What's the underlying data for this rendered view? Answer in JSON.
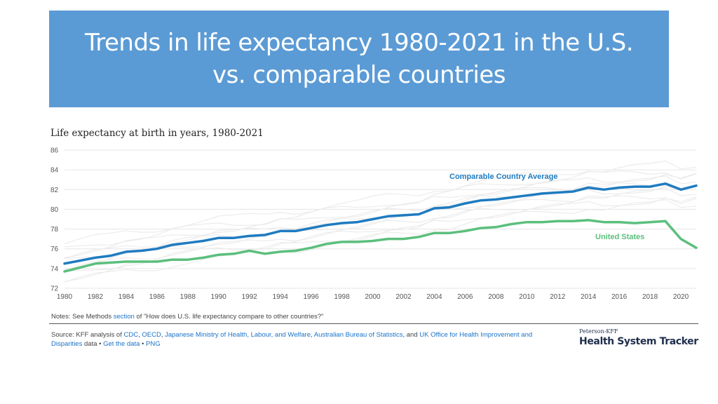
{
  "slide": {
    "title_line1": "Trends in life expectancy 1980-2021 in the U.S.",
    "title_line2": "vs. comparable countries"
  },
  "chart_data": {
    "type": "line",
    "title": "Life expectancy at birth in years, 1980-2021",
    "xlabel": "",
    "ylabel": "",
    "xlim": [
      1980,
      2021
    ],
    "ylim": [
      72,
      86
    ],
    "grid": true,
    "y_ticks": [
      72,
      74,
      76,
      78,
      80,
      82,
      84,
      86
    ],
    "x_ticks": [
      1980,
      1982,
      1984,
      1986,
      1988,
      1990,
      1992,
      1994,
      1996,
      1998,
      2000,
      2002,
      2004,
      2006,
      2008,
      2010,
      2012,
      2014,
      2016,
      2018,
      2020
    ],
    "x": [
      1980,
      1981,
      1982,
      1983,
      1984,
      1985,
      1986,
      1987,
      1988,
      1989,
      1990,
      1991,
      1992,
      1993,
      1994,
      1995,
      1996,
      1997,
      1998,
      1999,
      2000,
      2001,
      2002,
      2003,
      2004,
      2005,
      2006,
      2007,
      2008,
      2009,
      2010,
      2011,
      2012,
      2013,
      2014,
      2015,
      2016,
      2017,
      2018,
      2019,
      2020,
      2021
    ],
    "series": [
      {
        "name": "Comparable Country Average",
        "color": "#1f7bc0",
        "values": [
          74.5,
          74.8,
          75.1,
          75.3,
          75.7,
          75.8,
          76.0,
          76.4,
          76.6,
          76.8,
          77.1,
          77.1,
          77.3,
          77.4,
          77.8,
          77.8,
          78.1,
          78.4,
          78.6,
          78.7,
          79.0,
          79.3,
          79.4,
          79.5,
          80.1,
          80.2,
          80.6,
          80.9,
          81.0,
          81.2,
          81.4,
          81.6,
          81.7,
          81.8,
          82.2,
          82.0,
          82.2,
          82.3,
          82.3,
          82.6,
          82.0,
          82.4
        ]
      },
      {
        "name": "United States",
        "color": "#5cbf7d",
        "values": [
          73.7,
          74.1,
          74.5,
          74.6,
          74.7,
          74.7,
          74.7,
          74.9,
          74.9,
          75.1,
          75.4,
          75.5,
          75.8,
          75.5,
          75.7,
          75.8,
          76.1,
          76.5,
          76.7,
          76.7,
          76.8,
          77.0,
          77.0,
          77.2,
          77.6,
          77.6,
          77.8,
          78.1,
          78.2,
          78.5,
          78.7,
          78.7,
          78.8,
          78.8,
          78.9,
          78.7,
          78.7,
          78.6,
          78.7,
          78.8,
          77.0,
          76.1
        ]
      }
    ],
    "background_series_note": "Individual comparable countries shown as light gray lines"
  },
  "footer": {
    "notes_prefix": "Notes: See Methods ",
    "notes_link": "section",
    "notes_suffix": " of \"How does U.S. life expectancy compare to other countries?\"",
    "source_prefix": "Source: KFF analysis of ",
    "src_cdc": "CDC",
    "sep_comma1": ", ",
    "src_oecd": "OECD",
    "sep_comma2": ", ",
    "src_japan": "Japanese Ministry of Health, Labour, and Welfare",
    "sep_comma3": ", ",
    "src_abs": "Australian Bureau of Statistics",
    "sep_and": ", and ",
    "src_uk": "UK Office for Health Improvement and Disparities",
    "source_data_word": " data • ",
    "get_data": "Get the data",
    "bullet2": " • ",
    "png": "PNG",
    "brand_small": "Peterson-KFF",
    "brand_big": "Health System Tracker"
  },
  "colors": {
    "title_bg": "#5b9bd5",
    "link": "#1a73c8",
    "grid": "#e6e6e6",
    "bg_lines": "#ececec"
  }
}
